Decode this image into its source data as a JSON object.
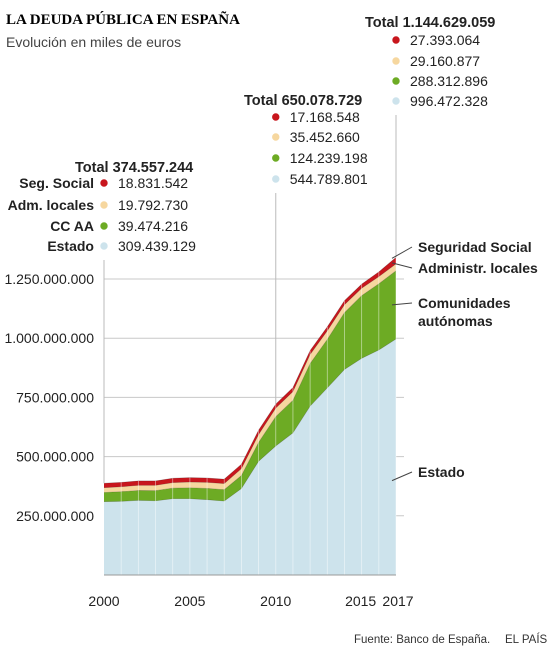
{
  "title": "LA DEUDA PÚBLICA EN ESPAÑA",
  "subtitle": "Evolución en miles de euros",
  "source": "Fuente: Banco de España.",
  "brand": "EL PAÍS",
  "colors": {
    "Estado": "#cde3ec",
    "Comunidades autónomas": "#6dab24",
    "Administr. locales": "#f6d79f",
    "Seguridad Social": "#c8161d"
  },
  "chart_data": {
    "type": "area",
    "stacked": true,
    "x": [
      2000,
      2001,
      2002,
      2003,
      2004,
      2005,
      2006,
      2007,
      2008,
      2009,
      2010,
      2011,
      2012,
      2013,
      2014,
      2015,
      2016,
      2017
    ],
    "series": [
      {
        "name": "Estado",
        "values": [
          309439,
          311000,
          315000,
          313000,
          322000,
          322000,
          318000,
          312000,
          365000,
          480000,
          544790,
          600000,
          713000,
          790000,
          868000,
          915000,
          950000,
          996472
        ]
      },
      {
        "name": "Comunidades autónomas",
        "values": [
          39474,
          41000,
          42000,
          43500,
          45000,
          46500,
          48000,
          48500,
          55000,
          80000,
          124239,
          138000,
          180000,
          205000,
          240000,
          265000,
          280000,
          288313
        ]
      },
      {
        "name": "Administr. locales",
        "values": [
          19793,
          20500,
          21500,
          22000,
          23000,
          24000,
          25000,
          25500,
          29000,
          33000,
          35453,
          36500,
          38000,
          36000,
          33500,
          31000,
          30000,
          29161
        ]
      },
      {
        "name": "Seguridad Social",
        "values": [
          18832,
          18832,
          18832,
          18832,
          18832,
          18832,
          18832,
          18832,
          18832,
          18832,
          17169,
          17169,
          17188,
          17188,
          17188,
          17188,
          20000,
          27393
        ]
      }
    ],
    "ylim": [
      0,
      1330000
    ],
    "xlim": [
      2000,
      2017
    ],
    "yticks": [
      {
        "value": 250000,
        "label": "250.000.000"
      },
      {
        "value": 500000,
        "label": "500.000.000"
      },
      {
        "value": 750000,
        "label": "750.000.000"
      },
      {
        "value": 1000000,
        "label": "1.000.000.000"
      },
      {
        "value": 1250000,
        "label": "1.250.000.000"
      }
    ],
    "xticks": [
      {
        "value": 2000,
        "label": "2000"
      },
      {
        "value": 2005,
        "label": "2005"
      },
      {
        "value": 2010,
        "label": "2010"
      },
      {
        "value": 2015,
        "label": "2015"
      },
      {
        "value": 2017,
        "label": "2017"
      }
    ],
    "series_labels": [
      {
        "series": "Seguridad Social",
        "lines": [
          "Seguridad Social"
        ]
      },
      {
        "series": "Administr. locales",
        "lines": [
          "Administr. locales"
        ]
      },
      {
        "series": "Comunidades autónomas",
        "lines": [
          "Comunidades",
          "autónomas"
        ]
      },
      {
        "series": "Estado",
        "lines": [
          "Estado"
        ]
      }
    ],
    "annotations": [
      {
        "year": 2000,
        "total_label": "Total 374.557.244",
        "rows": [
          {
            "name": "Seg. Social",
            "series": "Seguridad Social",
            "value": "18.831.542"
          },
          {
            "name": "Adm. locales",
            "series": "Administr. locales",
            "value": "19.792.730"
          },
          {
            "name": "CC AA",
            "series": "Comunidades autónomas",
            "value": "39.474.216"
          },
          {
            "name": "Estado",
            "series": "Estado",
            "value": "309.439.129"
          }
        ]
      },
      {
        "year": 2010,
        "total_label": "Total 650.078.729",
        "rows": [
          {
            "name": "",
            "series": "Seguridad Social",
            "value": "17.168.548"
          },
          {
            "name": "",
            "series": "Administr. locales",
            "value": "35.452.660"
          },
          {
            "name": "",
            "series": "Comunidades autónomas",
            "value": "124.239.198"
          },
          {
            "name": "",
            "series": "Estado",
            "value": "544.789.801"
          }
        ]
      },
      {
        "year": 2017,
        "total_label": "Total 1.144.629.059",
        "rows": [
          {
            "name": "",
            "series": "Seguridad Social",
            "value": "27.393.064"
          },
          {
            "name": "",
            "series": "Administr. locales",
            "value": "29.160.877"
          },
          {
            "name": "",
            "series": "Comunidades autónomas",
            "value": "288.312.896"
          },
          {
            "name": "",
            "series": "Estado",
            "value": "996.472.328"
          }
        ]
      }
    ]
  }
}
